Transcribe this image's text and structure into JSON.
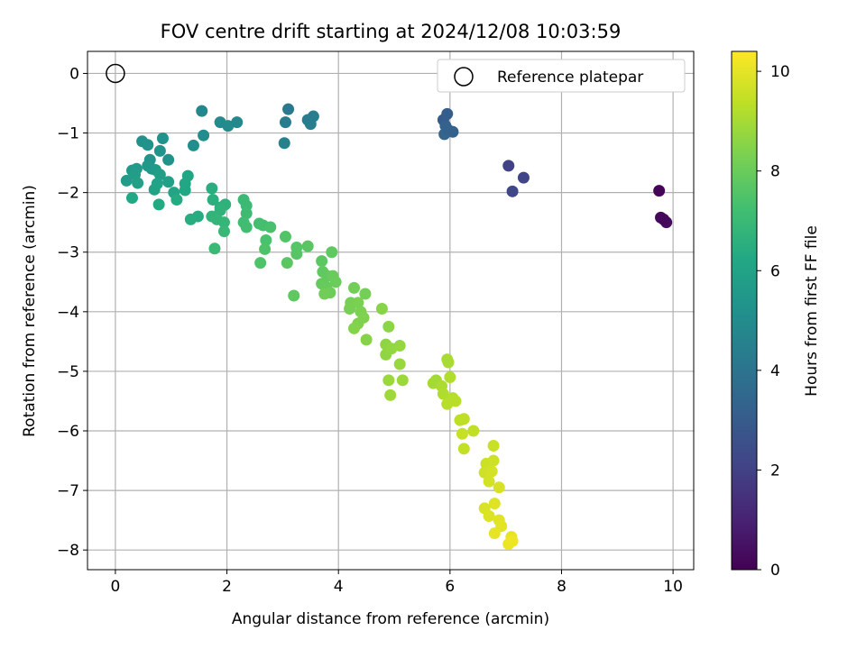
{
  "chart_data": {
    "type": "scatter",
    "title": "FOV centre drift starting at 2024/12/08 10:03:59",
    "xlabel": "Angular distance from reference (arcmin)",
    "ylabel": "Rotation from reference (arcmin)",
    "xlim": [
      -0.5,
      10.37
    ],
    "ylim": [
      -8.33,
      0.37
    ],
    "xticks": [
      0,
      2,
      4,
      6,
      8,
      10
    ],
    "yticks": [
      0,
      -1,
      -2,
      -3,
      -4,
      -5,
      -6,
      -7,
      -8
    ],
    "xtick_labels": [
      "0",
      "2",
      "4",
      "6",
      "8",
      "10"
    ],
    "ytick_labels": [
      "0",
      "−1",
      "−2",
      "−3",
      "−4",
      "−5",
      "−6",
      "−7",
      "−8"
    ],
    "grid": true,
    "legend": {
      "placement": "upper right",
      "entries": [
        {
          "label": "Reference platepar",
          "marker": "open-circle"
        }
      ]
    },
    "reference_point": {
      "label": "Reference platepar",
      "x": 0,
      "y": 0
    },
    "colorbar": {
      "label": "Hours from first FF file",
      "colormap": "viridis",
      "range": [
        0,
        10.4
      ],
      "ticks": [
        0,
        2,
        4,
        6,
        8,
        10
      ],
      "tick_labels": [
        "0",
        "2",
        "4",
        "6",
        "8",
        "10"
      ]
    },
    "points": [
      [
        9.75,
        -1.97,
        0.1
      ],
      [
        9.78,
        -2.42,
        0.2
      ],
      [
        9.88,
        -2.5,
        0.3
      ],
      [
        9.83,
        -2.45,
        0.25
      ],
      [
        7.05,
        -1.55,
        2.0
      ],
      [
        7.32,
        -1.75,
        2.1
      ],
      [
        7.12,
        -1.98,
        2.2
      ],
      [
        5.88,
        -0.78,
        3.0
      ],
      [
        5.95,
        -0.68,
        3.1
      ],
      [
        5.92,
        -0.88,
        3.2
      ],
      [
        6.05,
        -0.98,
        3.3
      ],
      [
        5.9,
        -1.02,
        3.35
      ],
      [
        5.97,
        -0.95,
        3.25
      ],
      [
        3.1,
        -0.6,
        4.2
      ],
      [
        3.05,
        -0.82,
        4.3
      ],
      [
        3.55,
        -0.72,
        4.4
      ],
      [
        3.5,
        -0.85,
        4.5
      ],
      [
        3.45,
        -0.78,
        4.35
      ],
      [
        3.03,
        -1.17,
        4.55
      ],
      [
        1.55,
        -0.63,
        4.8
      ],
      [
        1.88,
        -0.82,
        4.9
      ],
      [
        2.02,
        -0.88,
        4.95
      ],
      [
        2.18,
        -0.82,
        4.85
      ],
      [
        1.58,
        -1.04,
        5.0
      ],
      [
        1.4,
        -1.21,
        5.1
      ],
      [
        0.48,
        -1.14,
        5.2
      ],
      [
        0.58,
        -1.2,
        5.3
      ],
      [
        0.85,
        -1.09,
        5.25
      ],
      [
        0.62,
        -1.45,
        5.4
      ],
      [
        0.8,
        -1.3,
        5.35
      ],
      [
        0.95,
        -1.45,
        5.3
      ],
      [
        0.65,
        -1.6,
        5.45
      ],
      [
        0.58,
        -1.55,
        5.5
      ],
      [
        0.3,
        -1.63,
        5.55
      ],
      [
        0.38,
        -1.6,
        5.6
      ],
      [
        0.72,
        -1.62,
        5.65
      ],
      [
        0.2,
        -1.8,
        5.7
      ],
      [
        0.35,
        -1.7,
        5.75
      ],
      [
        0.8,
        -1.7,
        5.8
      ],
      [
        0.95,
        -1.82,
        5.85
      ],
      [
        0.4,
        -1.84,
        5.9
      ],
      [
        0.75,
        -1.85,
        5.95
      ],
      [
        0.7,
        -1.95,
        6.0
      ],
      [
        1.05,
        -2.0,
        6.05
      ],
      [
        1.3,
        -1.72,
        6.1
      ],
      [
        1.25,
        -1.85,
        6.15
      ],
      [
        1.25,
        -1.96,
        6.2
      ],
      [
        0.3,
        -2.09,
        6.25
      ],
      [
        0.78,
        -2.2,
        6.3
      ],
      [
        1.1,
        -2.12,
        6.35
      ],
      [
        1.48,
        -2.4,
        6.4
      ],
      [
        1.35,
        -2.45,
        6.45
      ],
      [
        1.73,
        -1.93,
        6.5
      ],
      [
        1.75,
        -2.12,
        6.55
      ],
      [
        1.88,
        -2.25,
        6.6
      ],
      [
        1.97,
        -2.2,
        6.65
      ],
      [
        1.88,
        -2.3,
        6.7
      ],
      [
        1.73,
        -2.4,
        6.75
      ],
      [
        1.82,
        -2.45,
        6.8
      ],
      [
        1.95,
        -2.5,
        6.85
      ],
      [
        1.95,
        -2.65,
        6.9
      ],
      [
        1.78,
        -2.94,
        6.95
      ],
      [
        2.3,
        -2.12,
        7.0
      ],
      [
        2.35,
        -2.22,
        7.05
      ],
      [
        2.35,
        -2.35,
        7.1
      ],
      [
        2.3,
        -2.5,
        7.15
      ],
      [
        2.35,
        -2.58,
        7.2
      ],
      [
        2.58,
        -2.52,
        7.25
      ],
      [
        2.65,
        -2.55,
        7.3
      ],
      [
        2.78,
        -2.58,
        7.35
      ],
      [
        2.7,
        -2.8,
        7.4
      ],
      [
        2.68,
        -2.95,
        7.45
      ],
      [
        2.6,
        -3.18,
        7.5
      ],
      [
        3.05,
        -2.74,
        7.55
      ],
      [
        3.25,
        -2.92,
        7.6
      ],
      [
        3.25,
        -3.03,
        7.65
      ],
      [
        3.45,
        -2.9,
        7.7
      ],
      [
        3.08,
        -3.18,
        7.75
      ],
      [
        3.2,
        -3.73,
        7.8
      ],
      [
        3.7,
        -3.15,
        7.72
      ],
      [
        3.88,
        -3.0,
        7.78
      ],
      [
        3.72,
        -3.33,
        7.82
      ],
      [
        3.8,
        -3.4,
        7.86
      ],
      [
        3.7,
        -3.53,
        7.9
      ],
      [
        3.78,
        -3.58,
        7.94
      ],
      [
        3.9,
        -3.4,
        7.98
      ],
      [
        3.95,
        -3.5,
        8.02
      ],
      [
        3.85,
        -3.68,
        8.06
      ],
      [
        3.75,
        -3.7,
        8.1
      ],
      [
        4.28,
        -3.6,
        8.14
      ],
      [
        4.48,
        -3.7,
        8.18
      ],
      [
        4.22,
        -3.85,
        8.22
      ],
      [
        4.2,
        -3.95,
        8.26
      ],
      [
        4.35,
        -3.85,
        8.3
      ],
      [
        4.4,
        -4.0,
        8.34
      ],
      [
        4.45,
        -4.1,
        8.38
      ],
      [
        4.35,
        -4.2,
        8.42
      ],
      [
        4.28,
        -4.28,
        8.46
      ],
      [
        4.5,
        -4.47,
        8.5
      ],
      [
        4.78,
        -3.95,
        8.54
      ],
      [
        4.9,
        -4.25,
        8.58
      ],
      [
        4.85,
        -4.55,
        8.62
      ],
      [
        4.85,
        -4.72,
        8.66
      ],
      [
        4.95,
        -4.62,
        8.7
      ],
      [
        5.1,
        -4.57,
        8.74
      ],
      [
        5.1,
        -4.88,
        8.78
      ],
      [
        4.9,
        -5.15,
        8.82
      ],
      [
        5.15,
        -5.15,
        8.86
      ],
      [
        4.93,
        -5.4,
        8.9
      ],
      [
        5.75,
        -5.15,
        8.94
      ],
      [
        5.7,
        -5.2,
        8.98
      ],
      [
        5.95,
        -4.8,
        9.02
      ],
      [
        5.97,
        -4.85,
        9.06
      ],
      [
        5.85,
        -5.25,
        9.1
      ],
      [
        5.88,
        -5.38,
        9.14
      ],
      [
        6.0,
        -5.1,
        9.18
      ],
      [
        6.05,
        -5.45,
        9.22
      ],
      [
        5.95,
        -5.55,
        9.26
      ],
      [
        6.1,
        -5.5,
        9.3
      ],
      [
        6.18,
        -5.82,
        9.34
      ],
      [
        6.25,
        -5.8,
        9.38
      ],
      [
        6.42,
        -6.0,
        9.42
      ],
      [
        6.25,
        -6.3,
        9.46
      ],
      [
        6.22,
        -6.05,
        9.5
      ],
      [
        6.78,
        -6.25,
        9.54
      ],
      [
        6.65,
        -6.55,
        9.58
      ],
      [
        6.78,
        -6.5,
        9.62
      ],
      [
        6.62,
        -6.7,
        9.66
      ],
      [
        6.7,
        -6.85,
        9.7
      ],
      [
        6.75,
        -6.68,
        9.74
      ],
      [
        6.88,
        -6.95,
        9.78
      ],
      [
        6.62,
        -7.3,
        9.82
      ],
      [
        6.7,
        -7.43,
        9.86
      ],
      [
        6.8,
        -7.22,
        9.9
      ],
      [
        6.88,
        -7.5,
        9.94
      ],
      [
        6.92,
        -7.6,
        9.98
      ],
      [
        6.8,
        -7.72,
        10.02
      ],
      [
        7.1,
        -7.78,
        10.06
      ],
      [
        7.05,
        -7.9,
        10.1
      ],
      [
        7.12,
        -7.85,
        10.15
      ]
    ]
  }
}
